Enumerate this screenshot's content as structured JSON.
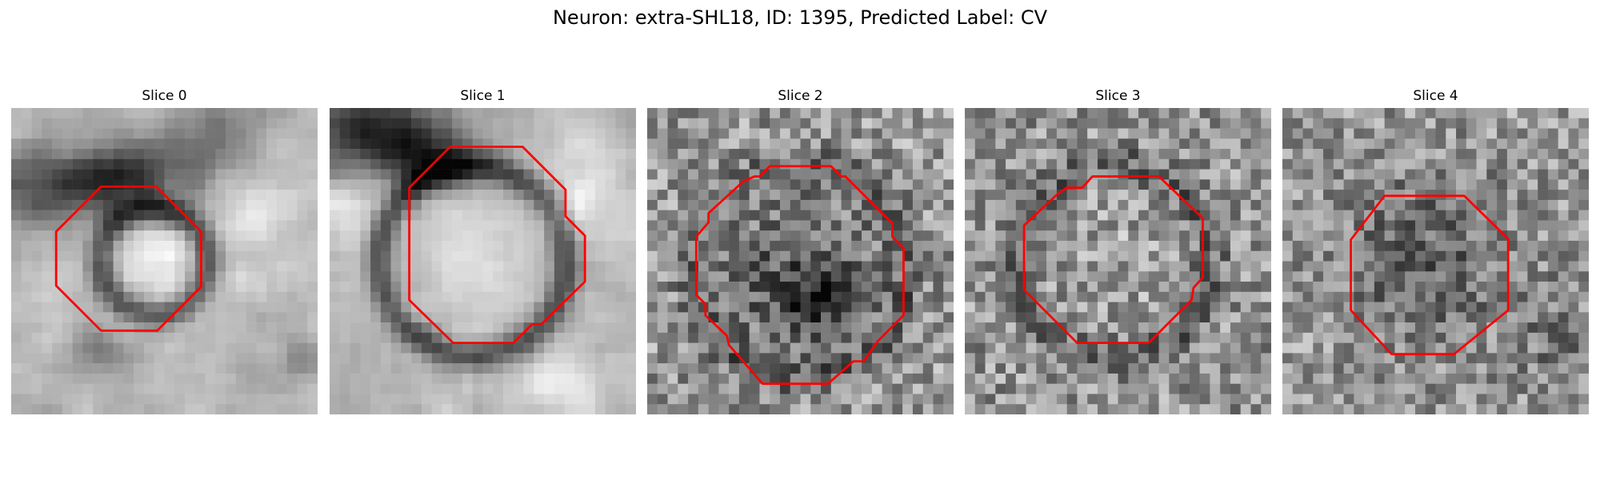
{
  "figure": {
    "title": "Neuron: extra-SHL18, ID: 1395, Predicted Label: CV"
  },
  "panels": [
    {
      "title": "Slice 0"
    },
    {
      "title": "Slice 1"
    },
    {
      "title": "Slice 2"
    },
    {
      "title": "Slice 3"
    },
    {
      "title": "Slice 4"
    }
  ],
  "colors": {
    "contour": "#ff0000",
    "background": "#ffffff"
  },
  "colormap": "gray"
}
